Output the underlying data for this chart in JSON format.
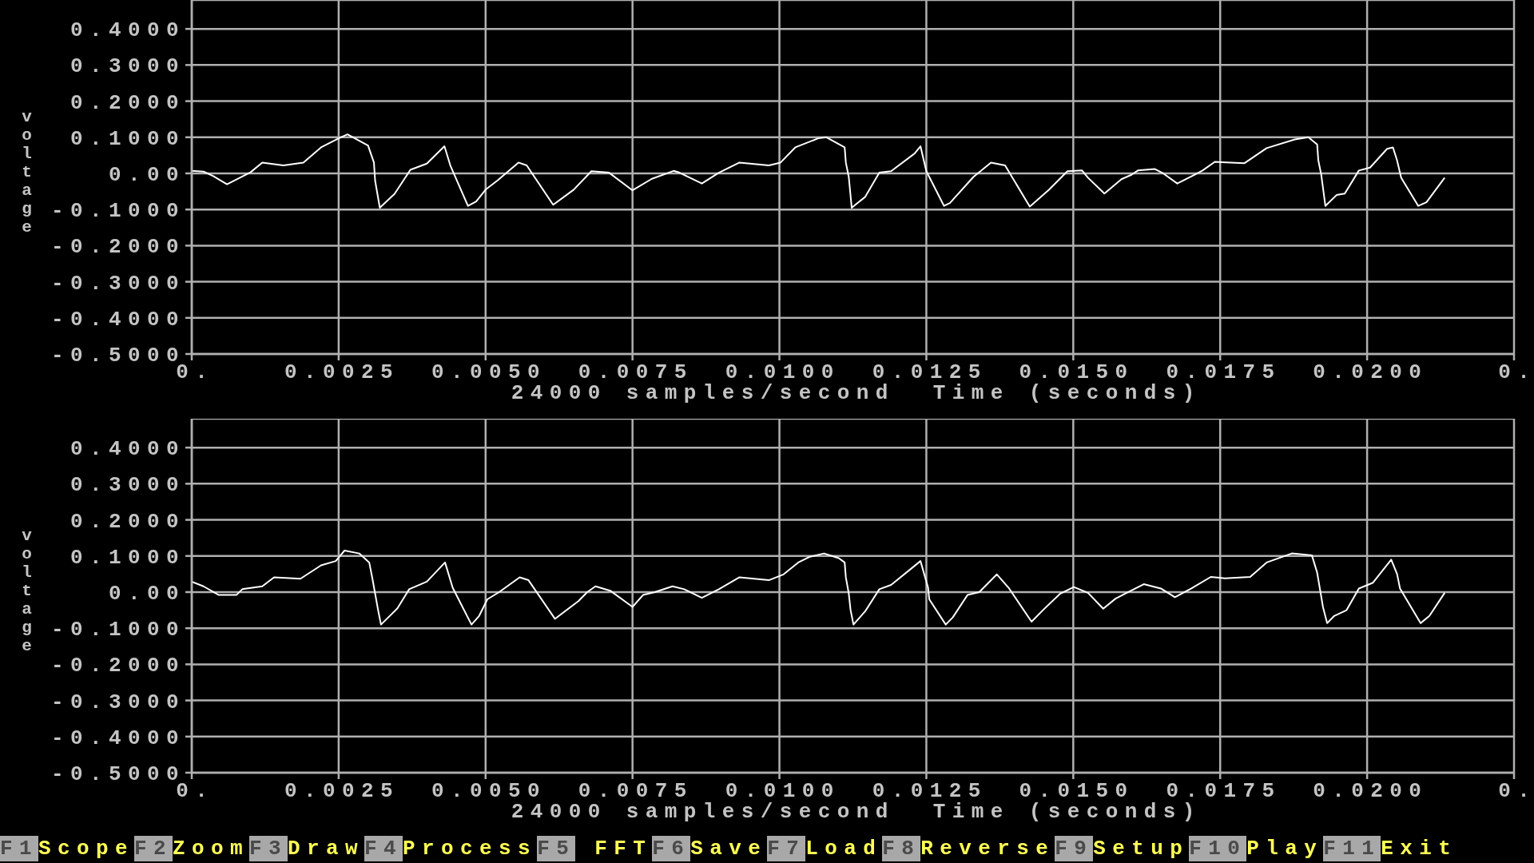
{
  "chart_data": [
    {
      "type": "line",
      "xlabel": "24000 samples/second  Time (seconds)",
      "ylabel": "voltage",
      "color": "#ffffff",
      "grid": true,
      "xlim": [
        0,
        0.0225
      ],
      "xticks": [
        {
          "value": 0,
          "label": "0."
        },
        0.0025,
        {
          "value": 0.005,
          "label": "0.0050"
        },
        0.0075,
        {
          "value": 0.01,
          "label": "0.0100"
        },
        0.0125,
        {
          "value": 0.015,
          "label": "0.0150"
        },
        0.0175,
        {
          "value": 0.02,
          "label": "0.0200"
        },
        {
          "value": 0.0225,
          "label": "0."
        }
      ],
      "ylim": [
        -0.5,
        0.48
      ],
      "yticks": [
        {
          "value": 0.4,
          "label": "0.4000"
        },
        {
          "value": 0.3,
          "label": "0.3000"
        },
        {
          "value": 0.2,
          "label": "0.2000"
        },
        {
          "value": 0.1,
          "label": "0.1000"
        },
        {
          "value": 0,
          "label": "0.00"
        },
        {
          "value": -0.1,
          "label": "-0.1000"
        },
        {
          "value": -0.2,
          "label": "-0.2000"
        },
        {
          "value": -0.3,
          "label": "-0.3000"
        },
        {
          "value": -0.4,
          "label": "-0.4000"
        },
        {
          "value": -0.5,
          "label": "-0.5000"
        }
      ],
      "x": [
        0,
        0.0002,
        0.00036,
        0.0006,
        0.001,
        0.0012,
        0.00156,
        0.0019,
        0.0022,
        0.0025,
        0.00265,
        0.003,
        0.0031,
        0.00312,
        0.0032,
        0.00345,
        0.0036,
        0.00372,
        0.004,
        0.0043,
        0.0044,
        0.0047,
        0.00484,
        0.005,
        0.0052,
        0.00556,
        0.0057,
        0.00615,
        0.0065,
        0.0068,
        0.0071,
        0.0075,
        0.00783,
        0.0082,
        0.0083,
        0.00868,
        0.00897,
        0.00932,
        0.00982,
        0.01002,
        0.01027,
        0.01066,
        0.0108,
        0.01111,
        0.01113,
        0.01118,
        0.01123,
        0.01146,
        0.0117,
        0.0119,
        0.0123,
        0.0124,
        0.0125,
        0.0128,
        0.0129,
        0.0133,
        0.0136,
        0.01384,
        0.01426,
        0.01459,
        0.0149,
        0.01515,
        0.01525,
        0.01553,
        0.01582,
        0.01599,
        0.0161,
        0.01639,
        0.01653,
        0.01677,
        0.01706,
        0.0172,
        0.01741,
        0.01791,
        0.01829,
        0.01877,
        0.019,
        0.01915,
        0.01917,
        0.01922,
        0.01929,
        0.01948,
        0.01962,
        0.01986,
        0.02005,
        0.02034,
        0.02044,
        0.02051,
        0.02058,
        0.02087,
        0.02101,
        0.02132
      ],
      "values": [
        0.007,
        0.005,
        -0.007,
        -0.03,
        0.003,
        0.03,
        0.022,
        0.03,
        0.072,
        0.097,
        0.108,
        0.077,
        0.03,
        -0.02,
        -0.095,
        -0.057,
        -0.02,
        0.01,
        0.027,
        0.075,
        0.022,
        -0.09,
        -0.078,
        -0.045,
        -0.02,
        0.03,
        0.022,
        -0.087,
        -0.045,
        0.006,
        0.002,
        -0.047,
        -0.015,
        0.007,
        0.002,
        -0.028,
        0.002,
        0.03,
        0.022,
        0.03,
        0.072,
        0.097,
        0.1,
        0.072,
        0.03,
        -0.01,
        -0.095,
        -0.065,
        0.002,
        0.006,
        0.055,
        0.075,
        0.006,
        -0.09,
        -0.082,
        -0.01,
        0.03,
        0.022,
        -0.092,
        -0.045,
        0.006,
        0.008,
        -0.012,
        -0.056,
        -0.016,
        -0.004,
        0.008,
        0.012,
        0,
        -0.028,
        -0.004,
        0.008,
        0.032,
        0.028,
        0.07,
        0.094,
        0.1,
        0.08,
        0.036,
        -0.004,
        -0.09,
        -0.06,
        -0.056,
        0.008,
        0.016,
        0.068,
        0.072,
        0.036,
        -0.012,
        -0.09,
        -0.08,
        -0.012
      ]
    },
    {
      "type": "line",
      "xlabel": "24000 samples/second  Time (seconds)",
      "ylabel": "voltage",
      "color": "#ffffff",
      "grid": true,
      "xlim": [
        0,
        0.0225
      ],
      "xticks": [
        {
          "value": 0,
          "label": "0."
        },
        0.0025,
        {
          "value": 0.005,
          "label": "0.0050"
        },
        0.0075,
        {
          "value": 0.01,
          "label": "0.0100"
        },
        0.0125,
        {
          "value": 0.015,
          "label": "0.0150"
        },
        0.0175,
        {
          "value": 0.02,
          "label": "0.0200"
        },
        {
          "value": 0.0225,
          "label": "0."
        }
      ],
      "ylim": [
        -0.5,
        0.48
      ],
      "yticks": [
        {
          "value": 0.4,
          "label": "0.4000"
        },
        {
          "value": 0.3,
          "label": "0.3000"
        },
        {
          "value": 0.2,
          "label": "0.2000"
        },
        {
          "value": 0.1,
          "label": "0.1000"
        },
        {
          "value": 0,
          "label": "0.00"
        },
        {
          "value": -0.1,
          "label": "-0.1000"
        },
        {
          "value": -0.2,
          "label": "-0.2000"
        },
        {
          "value": -0.3,
          "label": "-0.3000"
        },
        {
          "value": -0.4,
          "label": "-0.4000"
        },
        {
          "value": -0.5,
          "label": "-0.5000"
        }
      ],
      "x": [
        0,
        0.0002,
        0.00046,
        0.00076,
        0.00086,
        0.0012,
        0.0014,
        0.00185,
        0.0022,
        0.00245,
        0.0026,
        0.00285,
        0.00302,
        0.00307,
        0.00312,
        0.00317,
        0.00322,
        0.0035,
        0.0037,
        0.004,
        0.00431,
        0.00444,
        0.00476,
        0.00489,
        0.00503,
        0.00523,
        0.00558,
        0.00573,
        0.00618,
        0.00658,
        0.00673,
        0.00687,
        0.00712,
        0.0075,
        0.00768,
        0.00788,
        0.00818,
        0.00838,
        0.00868,
        0.00897,
        0.00932,
        0.00982,
        0.01007,
        0.01032,
        0.01052,
        0.01076,
        0.01101,
        0.01111,
        0.01113,
        0.01118,
        0.01121,
        0.01126,
        0.01146,
        0.0117,
        0.0119,
        0.01225,
        0.0124,
        0.01253,
        0.01255,
        0.01283,
        0.01295,
        0.0132,
        0.0134,
        0.0137,
        0.0139,
        0.01429,
        0.01449,
        0.01478,
        0.01501,
        0.01525,
        0.01551,
        0.01572,
        0.01591,
        0.0162,
        0.01649,
        0.01673,
        0.01701,
        0.01734,
        0.01758,
        0.01801,
        0.01829,
        0.01872,
        0.01906,
        0.01915,
        0.0192,
        0.01925,
        0.01932,
        0.01944,
        0.01965,
        0.01986,
        0.0201,
        0.02041,
        0.02051,
        0.02056,
        0.02091,
        0.02106,
        0.02132
      ],
      "values": [
        0.029,
        0.016,
        -0.008,
        -0.008,
        0.008,
        0.016,
        0.041,
        0.037,
        0.074,
        0.086,
        0.115,
        0.107,
        0.082,
        0.041,
        -0.004,
        -0.049,
        -0.09,
        -0.045,
        0.008,
        0.029,
        0.082,
        0.012,
        -0.09,
        -0.066,
        -0.02,
        0,
        0.041,
        0.033,
        -0.074,
        -0.025,
        0,
        0.016,
        0.004,
        -0.041,
        -0.008,
        0,
        0.016,
        0.008,
        -0.016,
        0.008,
        0.041,
        0.033,
        0.049,
        0.082,
        0.098,
        0.107,
        0.094,
        0.082,
        0.041,
        -0.004,
        -0.049,
        -0.09,
        -0.053,
        0.008,
        0.02,
        0.066,
        0.086,
        0.012,
        -0.02,
        -0.09,
        -0.07,
        -0.008,
        0,
        0.049,
        0.012,
        -0.082,
        -0.049,
        -0.004,
        0.014,
        -0.002,
        -0.046,
        -0.018,
        -0.002,
        0.022,
        0.01,
        -0.014,
        0.01,
        0.042,
        0.038,
        0.042,
        0.082,
        0.107,
        0.102,
        0.054,
        0.006,
        -0.042,
        -0.086,
        -0.066,
        -0.05,
        0.01,
        0.026,
        0.09,
        0.05,
        0.01,
        -0.086,
        -0.066,
        -0.002
      ]
    },
    {
      "type": "other",
      "annotations": [
        "F1",
        "Scope",
        "F2",
        "Zoom",
        "F3",
        "Draw",
        "F4",
        "Process",
        "F5",
        " FFT",
        "F6",
        "Save",
        "F7",
        "Load",
        "F8",
        "Reverse",
        "F9",
        "Setup",
        "F10",
        "Play",
        "F11",
        "Exit"
      ]
    }
  ]
}
